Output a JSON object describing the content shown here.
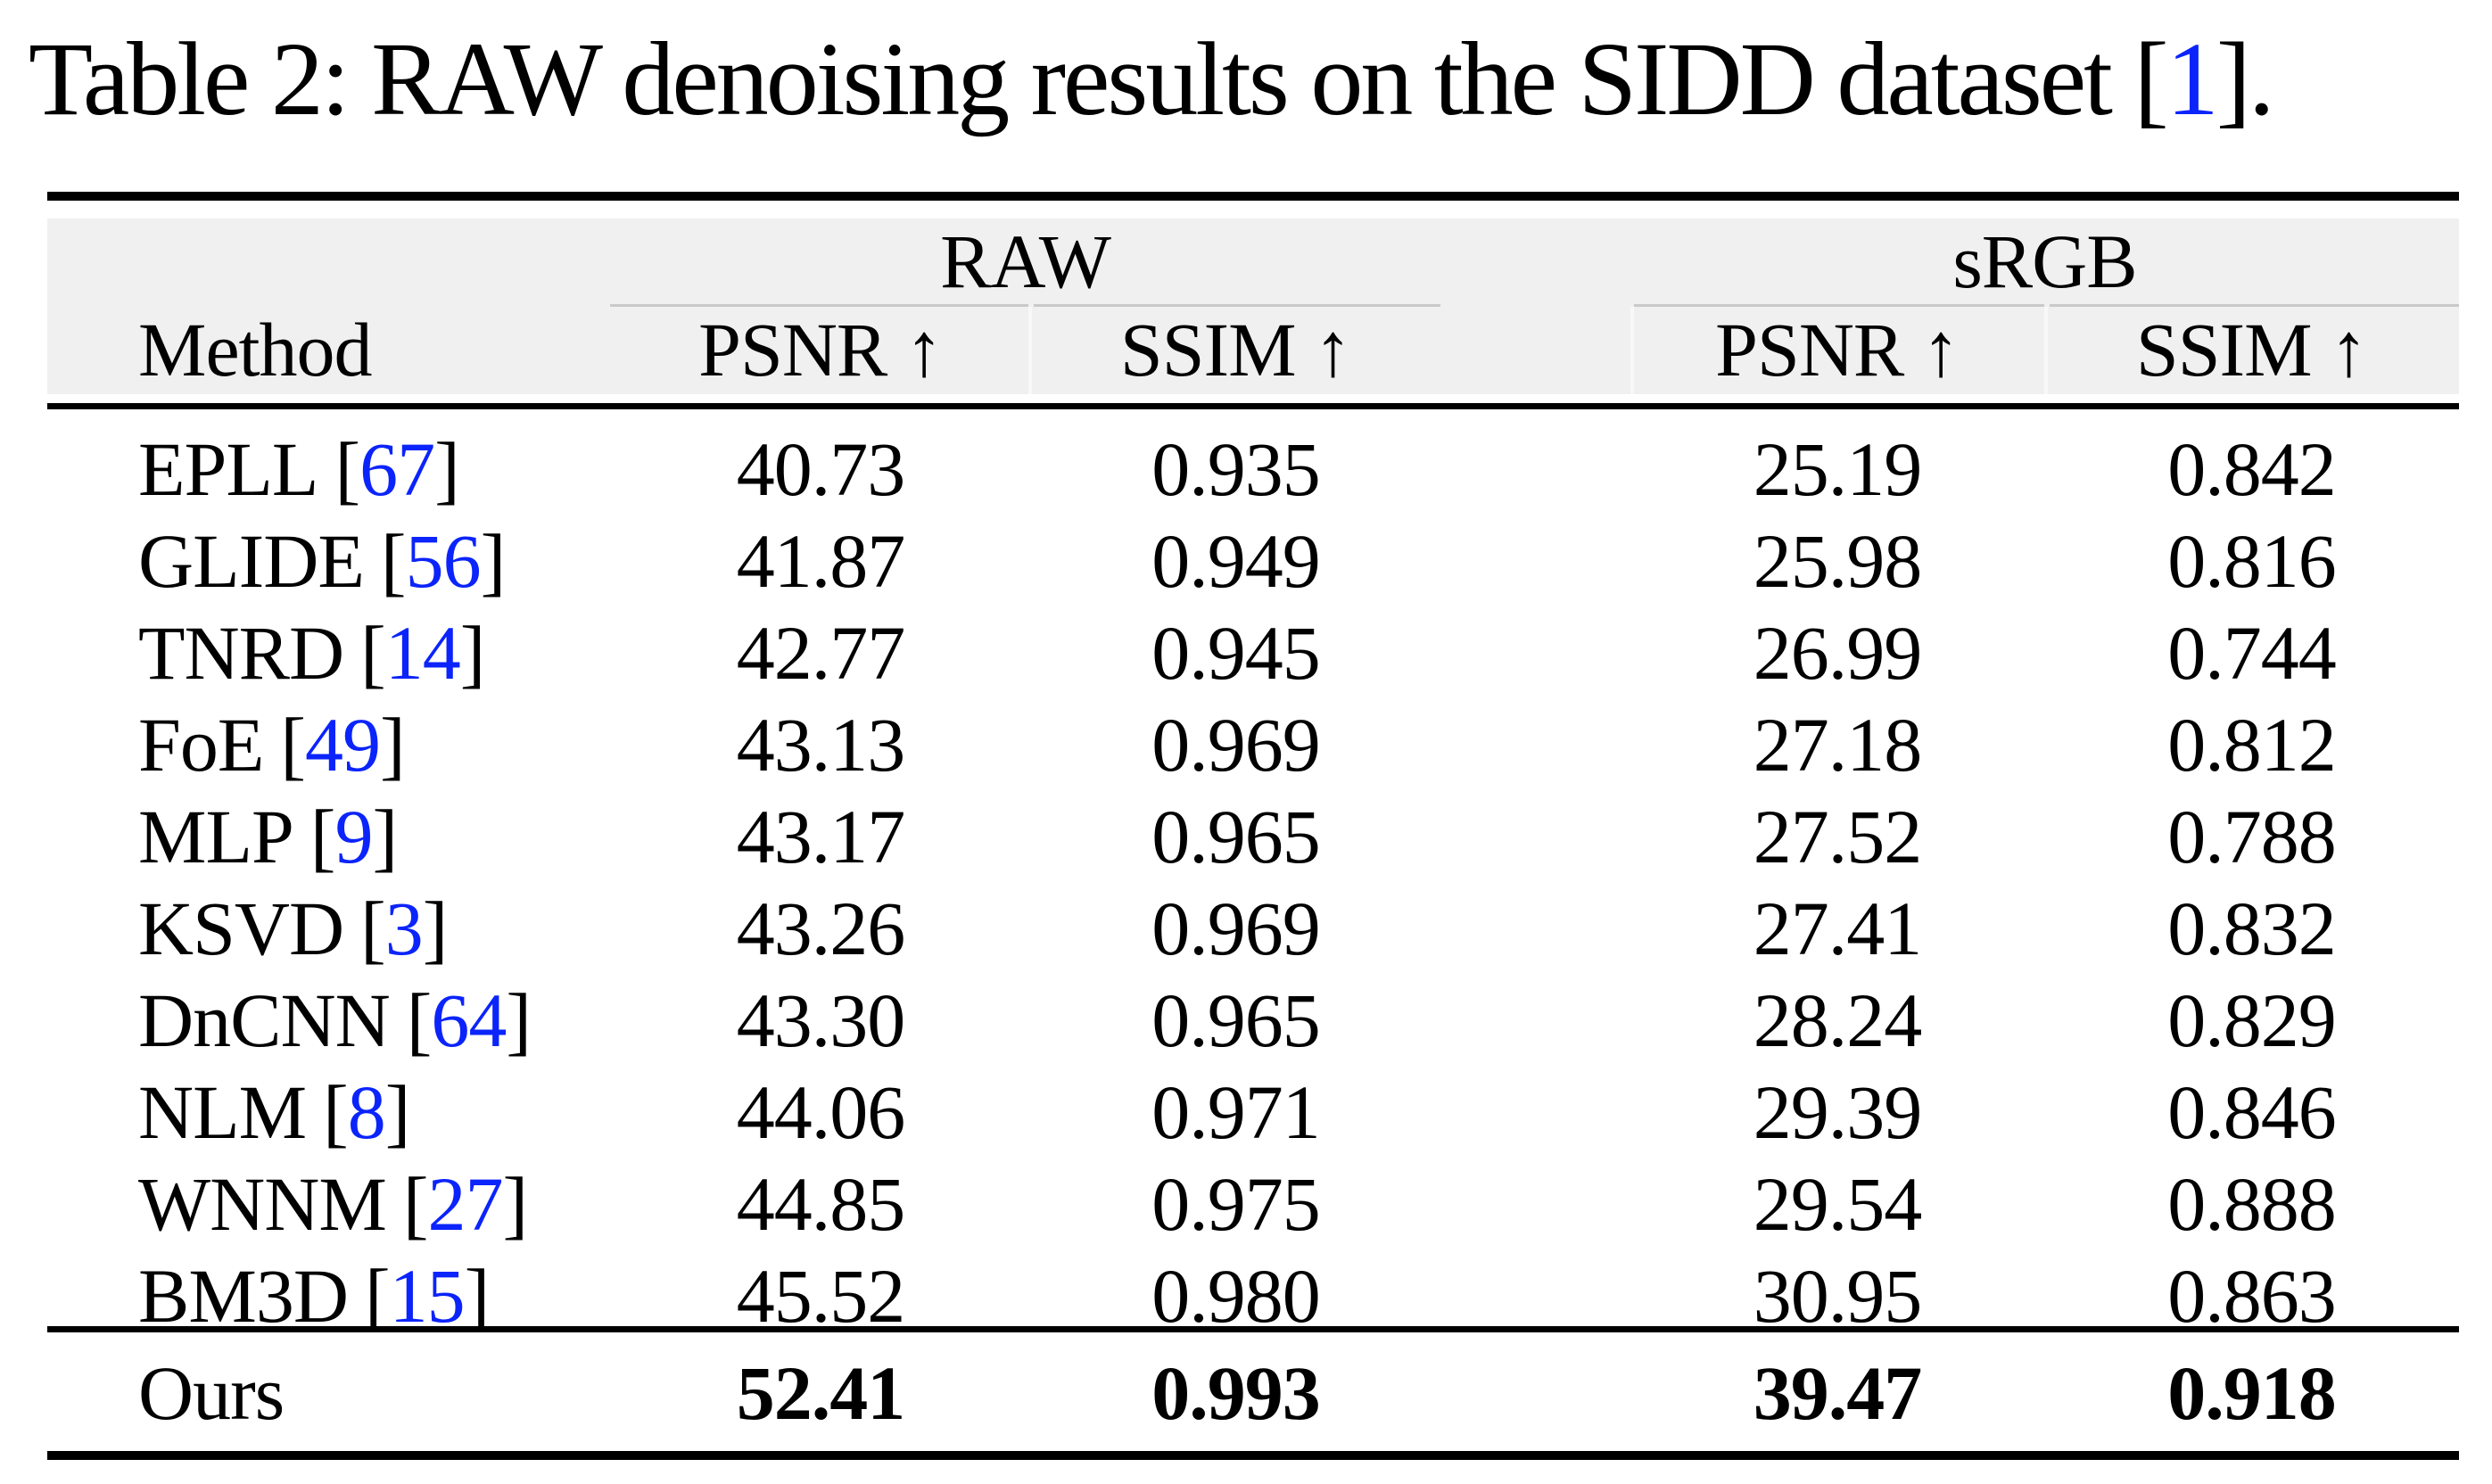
{
  "caption": {
    "prefix": "Table 2: RAW denoising results on the SIDD dataset [",
    "ref": "1",
    "suffix": "]."
  },
  "table": {
    "groups": [
      "RAW",
      "sRGB"
    ],
    "columns": {
      "method": "Method",
      "raw_psnr": "PSNR ↑",
      "raw_ssim": "SSIM ↑",
      "srgb_psnr": "PSNR ↑",
      "srgb_ssim": "SSIM ↑"
    },
    "ref_open": "[",
    "ref_close": "]",
    "rows": [
      {
        "method": "EPLL",
        "ref": "67",
        "raw_psnr": "40.73",
        "raw_ssim": "0.935",
        "srgb_psnr": "25.19",
        "srgb_ssim": "0.842"
      },
      {
        "method": "GLIDE",
        "ref": "56",
        "raw_psnr": "41.87",
        "raw_ssim": "0.949",
        "srgb_psnr": "25.98",
        "srgb_ssim": "0.816"
      },
      {
        "method": "TNRD",
        "ref": "14",
        "raw_psnr": "42.77",
        "raw_ssim": "0.945",
        "srgb_psnr": "26.99",
        "srgb_ssim": "0.744"
      },
      {
        "method": "FoE",
        "ref": "49",
        "raw_psnr": "43.13",
        "raw_ssim": "0.969",
        "srgb_psnr": "27.18",
        "srgb_ssim": "0.812"
      },
      {
        "method": "MLP",
        "ref": "9",
        "raw_psnr": "43.17",
        "raw_ssim": "0.965",
        "srgb_psnr": "27.52",
        "srgb_ssim": "0.788"
      },
      {
        "method": "KSVD",
        "ref": "3",
        "raw_psnr": "43.26",
        "raw_ssim": "0.969",
        "srgb_psnr": "27.41",
        "srgb_ssim": "0.832"
      },
      {
        "method": "DnCNN",
        "ref": "64",
        "raw_psnr": "43.30",
        "raw_ssim": "0.965",
        "srgb_psnr": "28.24",
        "srgb_ssim": "0.829"
      },
      {
        "method": "NLM",
        "ref": "8",
        "raw_psnr": "44.06",
        "raw_ssim": "0.971",
        "srgb_psnr": "29.39",
        "srgb_ssim": "0.846"
      },
      {
        "method": "WNNM",
        "ref": "27",
        "raw_psnr": "44.85",
        "raw_ssim": "0.975",
        "srgb_psnr": "29.54",
        "srgb_ssim": "0.888"
      },
      {
        "method": "BM3D",
        "ref": "15",
        "raw_psnr": "45.52",
        "raw_ssim": "0.980",
        "srgb_psnr": "30.95",
        "srgb_ssim": "0.863"
      }
    ],
    "ours": {
      "method": "Ours",
      "raw_psnr": "52.41",
      "raw_ssim": "0.993",
      "srgb_psnr": "39.47",
      "srgb_ssim": "0.918"
    }
  },
  "colors": {
    "reference_blue": "#0b24fb",
    "header_bg": "#f0f0f0",
    "rule_black": "#000000",
    "cmidrule_gray": "#c9c9c9"
  }
}
